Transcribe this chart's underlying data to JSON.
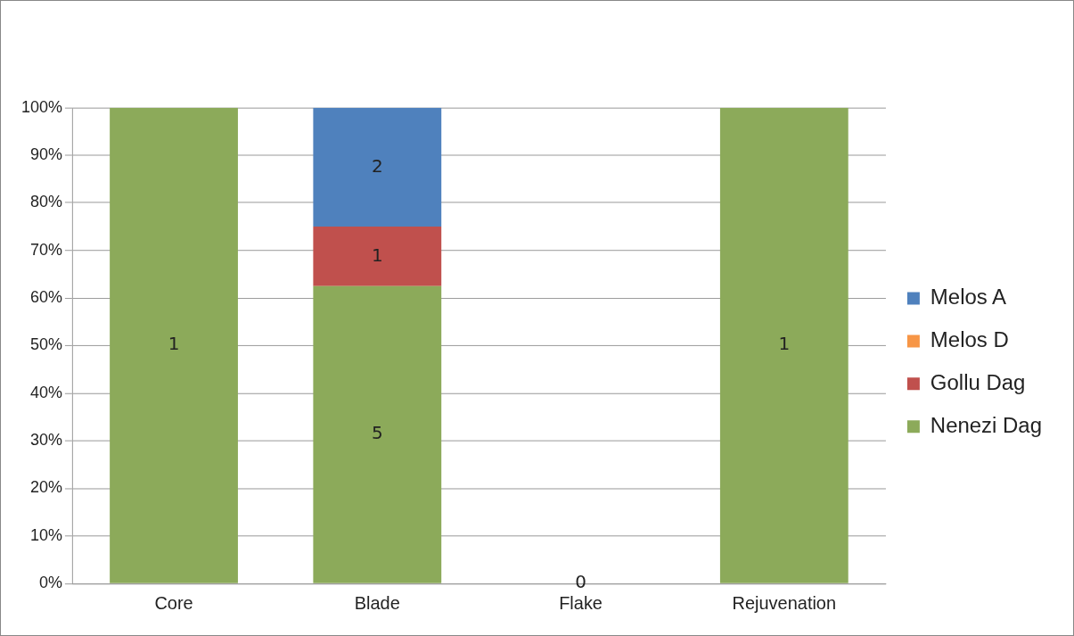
{
  "chart_data": {
    "type": "bar",
    "stacked": true,
    "categories": [
      "Core",
      "Blade",
      "Flake",
      "Rejuvenation"
    ],
    "series": [
      {
        "name": "Nenezi Dag",
        "color": "#8caa5a",
        "values": [
          100,
          62.5,
          0,
          100
        ]
      },
      {
        "name": "Gollu Dag",
        "color": "#c0504d",
        "values": [
          0,
          12.5,
          0,
          0
        ]
      },
      {
        "name": "Melos D",
        "color": "#f79646",
        "values": [
          0,
          0,
          0,
          0
        ]
      },
      {
        "name": "Melos A",
        "color": "#4f81bd",
        "values": [
          0,
          25,
          0,
          0
        ]
      }
    ],
    "annotations": [
      "1",
      "5",
      "1",
      {
        "text": "1",
        "x": "Blade",
        "y": 75
      },
      {
        "text": "2",
        "x": "Blade",
        "y": 100
      },
      {
        "text": "0",
        "x": "Flake",
        "y": 0
      }
    ],
    "ylim": [
      0,
      100
    ],
    "yticks": [
      {
        "value": 0,
        "label": "0%"
      },
      {
        "value": 10,
        "label": "10%"
      },
      {
        "value": 20,
        "label": "20%"
      },
      {
        "value": 30,
        "label": "30%"
      },
      {
        "value": 40,
        "label": "40%"
      },
      {
        "value": 50,
        "label": "50%"
      },
      {
        "value": 60,
        "label": "60%"
      },
      {
        "value": 70,
        "label": "70%"
      },
      {
        "value": 80,
        "label": "80%"
      },
      {
        "value": 90,
        "label": "90%"
      },
      {
        "value": 100,
        "label": "100%"
      }
    ],
    "grid": "y",
    "legend": "right"
  }
}
